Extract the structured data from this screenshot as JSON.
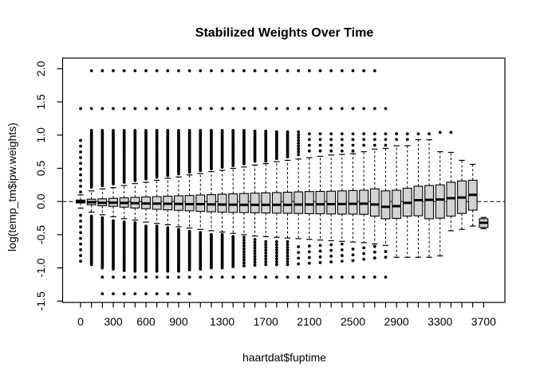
{
  "figure": {
    "title": "Stabilized Weights Over Time",
    "xlabel": "haartdat$fuptime",
    "ylabel": "log(temp_tm$ipw.weights)"
  },
  "chart_data": {
    "type": "boxplot",
    "title": "Stabilized Weights Over Time",
    "xlabel": "haartdat$fuptime",
    "ylabel": "log(temp_tm$ipw.weights)",
    "legend": null,
    "grid": false,
    "background": "#ffffff",
    "stroke_color": "#000000",
    "box_fill": "#d3d3d3",
    "reference_line_y": 0,
    "xlim": [
      -165,
      3895
    ],
    "ylim": [
      -1.52,
      2.16
    ],
    "x_tick_step": 100,
    "x_tick_min": 0,
    "x_tick_max": 3700,
    "x_labeled_ticks": [
      {
        "t": 0,
        "label": "0"
      },
      {
        "t": 300,
        "label": "300"
      },
      {
        "t": 600,
        "label": "600"
      },
      {
        "t": 900,
        "label": "900"
      },
      {
        "t": 1300,
        "label": "1300"
      },
      {
        "t": 1700,
        "label": "1700"
      },
      {
        "t": 2100,
        "label": "2100"
      },
      {
        "t": 2500,
        "label": "2500"
      },
      {
        "t": 2900,
        "label": "2900"
      },
      {
        "t": 3300,
        "label": "3300"
      },
      {
        "t": 3700,
        "label": "3700"
      }
    ],
    "y_ticks": [
      -1.5,
      -1.0,
      -0.5,
      0.0,
      0.5,
      1.0,
      1.5,
      2.0
    ],
    "y_tick_labels": [
      "-1.5",
      "-1.0",
      "-0.5",
      "0.0",
      "0.5",
      "1.0",
      "1.5",
      "2.0"
    ],
    "boxes": [
      {
        "t": 0,
        "wlo": -0.1,
        "q1": -0.022,
        "med": 0.0,
        "q3": 0.022,
        "whi": 0.1,
        "ohi": 0.92,
        "olo": -0.9,
        "dhi": "sparse",
        "dlo": "sparse"
      },
      {
        "t": 100,
        "wlo": -0.16,
        "q1": -0.05,
        "med": -0.01,
        "q3": 0.035,
        "whi": 0.16,
        "ohi": 1.07,
        "olo": -0.95,
        "dhi": "solid",
        "dlo": "solid"
      },
      {
        "t": 200,
        "wlo": -0.2,
        "q1": -0.065,
        "med": -0.02,
        "q3": 0.04,
        "whi": 0.19,
        "ohi": 1.07,
        "olo": -1.0,
        "dhi": "solid",
        "dlo": "solid"
      },
      {
        "t": 300,
        "wlo": -0.23,
        "q1": -0.072,
        "med": -0.018,
        "q3": 0.048,
        "whi": 0.21,
        "ohi": 1.07,
        "olo": -1.02,
        "dhi": "solid",
        "dlo": "solid"
      },
      {
        "t": 400,
        "wlo": -0.26,
        "q1": -0.085,
        "med": -0.022,
        "q3": 0.055,
        "whi": 0.24,
        "ohi": 1.07,
        "olo": -1.04,
        "dhi": "solid",
        "dlo": "solid"
      },
      {
        "t": 500,
        "wlo": -0.28,
        "q1": -0.098,
        "med": -0.026,
        "q3": 0.062,
        "whi": 0.27,
        "ohi": 1.07,
        "olo": -1.05,
        "dhi": "solid",
        "dlo": "solid"
      },
      {
        "t": 600,
        "wlo": -0.31,
        "q1": -0.108,
        "med": -0.03,
        "q3": 0.068,
        "whi": 0.29,
        "ohi": 1.07,
        "olo": -1.05,
        "dhi": "solid",
        "dlo": "solid"
      },
      {
        "t": 700,
        "wlo": -0.33,
        "q1": -0.118,
        "med": -0.032,
        "q3": 0.073,
        "whi": 0.32,
        "ohi": 1.07,
        "olo": -1.05,
        "dhi": "solid",
        "dlo": "solid"
      },
      {
        "t": 800,
        "wlo": -0.35,
        "q1": -0.125,
        "med": -0.034,
        "q3": 0.08,
        "whi": 0.35,
        "ohi": 1.07,
        "olo": -1.05,
        "dhi": "solid",
        "dlo": "solid"
      },
      {
        "t": 900,
        "wlo": -0.38,
        "q1": -0.132,
        "med": -0.036,
        "q3": 0.086,
        "whi": 0.37,
        "ohi": 1.07,
        "olo": -1.05,
        "dhi": "solid",
        "dlo": "solid"
      },
      {
        "t": 1000,
        "wlo": -0.4,
        "q1": -0.14,
        "med": -0.04,
        "q3": 0.09,
        "whi": 0.4,
        "ohi": 1.07,
        "olo": -1.03,
        "dhi": "solid",
        "dlo": "solid"
      },
      {
        "t": 1100,
        "wlo": -0.42,
        "q1": -0.148,
        "med": -0.04,
        "q3": 0.098,
        "whi": 0.42,
        "ohi": 1.07,
        "olo": -1.02,
        "dhi": "solid",
        "dlo": "solid"
      },
      {
        "t": 1200,
        "wlo": -0.44,
        "q1": -0.155,
        "med": -0.044,
        "q3": 0.104,
        "whi": 0.45,
        "ohi": 1.07,
        "olo": -1.0,
        "dhi": "solid",
        "dlo": "solid"
      },
      {
        "t": 1300,
        "wlo": -0.46,
        "q1": -0.16,
        "med": -0.046,
        "q3": 0.11,
        "whi": 0.47,
        "ohi": 1.07,
        "olo": -1.0,
        "dhi": "solid",
        "dlo": "solid"
      },
      {
        "t": 1400,
        "wlo": -0.48,
        "q1": -0.165,
        "med": -0.048,
        "q3": 0.115,
        "whi": 0.5,
        "ohi": 1.07,
        "olo": -0.98,
        "dhi": "solid",
        "dlo": "solid"
      },
      {
        "t": 1500,
        "wlo": -0.5,
        "q1": -0.168,
        "med": -0.05,
        "q3": 0.12,
        "whi": 0.52,
        "ohi": 1.07,
        "olo": -0.97,
        "dhi": "solid",
        "dlo": "mid"
      },
      {
        "t": 1600,
        "wlo": -0.52,
        "q1": -0.17,
        "med": -0.05,
        "q3": 0.125,
        "whi": 0.55,
        "ohi": 1.06,
        "olo": -0.96,
        "dhi": "solid",
        "dlo": "mid"
      },
      {
        "t": 1700,
        "wlo": -0.53,
        "q1": -0.173,
        "med": -0.05,
        "q3": 0.13,
        "whi": 0.57,
        "ohi": 1.06,
        "olo": -0.95,
        "dhi": "solid",
        "dlo": "mid"
      },
      {
        "t": 1800,
        "wlo": -0.54,
        "q1": -0.175,
        "med": -0.05,
        "q3": 0.135,
        "whi": 0.6,
        "ohi": 1.05,
        "olo": -0.95,
        "dhi": "solid",
        "dlo": "mid"
      },
      {
        "t": 1900,
        "wlo": -0.55,
        "q1": -0.178,
        "med": -0.05,
        "q3": 0.14,
        "whi": 0.62,
        "ohi": 1.05,
        "olo": -0.95,
        "dhi": "solid",
        "dlo": "mid"
      },
      {
        "t": 2000,
        "wlo": -0.56,
        "q1": -0.18,
        "med": -0.046,
        "q3": 0.145,
        "whi": 0.64,
        "ohi": 1.05,
        "olo": -0.94,
        "dhi": "mid",
        "dlo": "sparse"
      },
      {
        "t": 2100,
        "wlo": -0.57,
        "q1": -0.183,
        "med": -0.045,
        "q3": 0.15,
        "whi": 0.66,
        "ohi": 1.02,
        "olo": -0.93,
        "dhi": "sparse",
        "dlo": "sparse"
      },
      {
        "t": 2200,
        "wlo": -0.58,
        "q1": -0.185,
        "med": -0.042,
        "q3": 0.152,
        "whi": 0.68,
        "ohi": 1.02,
        "olo": -0.92,
        "dhi": "sparse",
        "dlo": "sparse"
      },
      {
        "t": 2300,
        "wlo": -0.59,
        "q1": -0.188,
        "med": -0.04,
        "q3": 0.155,
        "whi": 0.7,
        "ohi": 1.02,
        "olo": -0.91,
        "dhi": "sparse",
        "dlo": "sparse"
      },
      {
        "t": 2400,
        "wlo": -0.6,
        "q1": -0.19,
        "med": -0.038,
        "q3": 0.16,
        "whi": 0.71,
        "ohi": 1.02,
        "olo": -0.9,
        "dhi": "sparse",
        "dlo": "sparse"
      },
      {
        "t": 2500,
        "wlo": -0.61,
        "q1": -0.19,
        "med": -0.035,
        "q3": 0.165,
        "whi": 0.72,
        "ohi": 1.02,
        "olo": -0.89,
        "dhi": "sparse",
        "dlo": "sparse"
      },
      {
        "t": 2600,
        "wlo": -0.62,
        "q1": -0.193,
        "med": -0.033,
        "q3": 0.17,
        "whi": 0.75,
        "ohi": 1.02,
        "olo": -0.87,
        "dhi": "sparse",
        "dlo": "sparse"
      },
      {
        "t": 2700,
        "wlo": -0.64,
        "q1": -0.22,
        "med": -0.045,
        "q3": 0.19,
        "whi": 0.79,
        "ohi": 1.02,
        "olo": -0.85,
        "dhi": "sparse",
        "dlo": "sparse"
      },
      {
        "t": 2800,
        "wlo": -0.66,
        "q1": -0.26,
        "med": -0.08,
        "q3": 0.16,
        "whi": 0.8,
        "ohi": 1.02,
        "olo": -0.84,
        "dhi": "sparse",
        "dlo": "sparse"
      },
      {
        "t": 2900,
        "wlo": -0.84,
        "q1": -0.255,
        "med": -0.07,
        "q3": 0.17,
        "whi": 0.84,
        "ohi": 1.02,
        "olo": null,
        "dhi": "sparse",
        "dlo": null
      },
      {
        "t": 3000,
        "wlo": -0.84,
        "q1": -0.22,
        "med": -0.02,
        "q3": 0.2,
        "whi": 0.84,
        "ohi": 1.02,
        "olo": null,
        "dhi": "sparse",
        "dlo": null
      },
      {
        "t": 3100,
        "wlo": -0.84,
        "q1": -0.215,
        "med": 0.02,
        "q3": 0.23,
        "whi": 0.93,
        "ohi": 1.02,
        "olo": null,
        "dhi": "sparse",
        "dlo": null
      },
      {
        "t": 3200,
        "wlo": -0.84,
        "q1": -0.26,
        "med": 0.025,
        "q3": 0.24,
        "whi": 0.93,
        "ohi": 1.02,
        "olo": null,
        "dhi": "sparse",
        "dlo": null
      },
      {
        "t": 3300,
        "wlo": -0.82,
        "q1": -0.25,
        "med": 0.03,
        "q3": 0.25,
        "whi": 0.75,
        "ohi": null,
        "olo": null,
        "dhi": null,
        "dlo": null
      },
      {
        "t": 3400,
        "wlo": -0.44,
        "q1": -0.22,
        "med": 0.05,
        "q3": 0.29,
        "whi": 0.74,
        "ohi": null,
        "olo": null,
        "dhi": null,
        "dlo": null
      },
      {
        "t": 3500,
        "wlo": -0.42,
        "q1": -0.18,
        "med": 0.06,
        "q3": 0.31,
        "whi": 0.62,
        "ohi": null,
        "olo": null,
        "dhi": null,
        "dlo": null
      },
      {
        "t": 3600,
        "wlo": -0.37,
        "q1": -0.13,
        "med": 0.1,
        "q3": 0.32,
        "whi": 0.56,
        "ohi": null,
        "olo": null,
        "dhi": null,
        "dlo": null
      },
      {
        "t": 3700,
        "wlo": -0.41,
        "q1": -0.39,
        "med": -0.32,
        "q3": -0.26,
        "whi": -0.24,
        "ohi": null,
        "olo": null,
        "dhi": null,
        "dlo": null
      }
    ],
    "outlier_rows": [
      {
        "y": 1.97,
        "t_from": 100,
        "t_to": 2700
      },
      {
        "y": 1.4,
        "t_from": 0,
        "t_to": 2800
      },
      {
        "y": -1.14,
        "t_from": 200,
        "t_to": 2800
      },
      {
        "y": -1.39,
        "t_from": 200,
        "t_to": 1000
      }
    ],
    "extra_outliers": [
      {
        "t": 3300,
        "y": 1.04
      },
      {
        "t": 3400,
        "y": 1.04
      }
    ]
  }
}
